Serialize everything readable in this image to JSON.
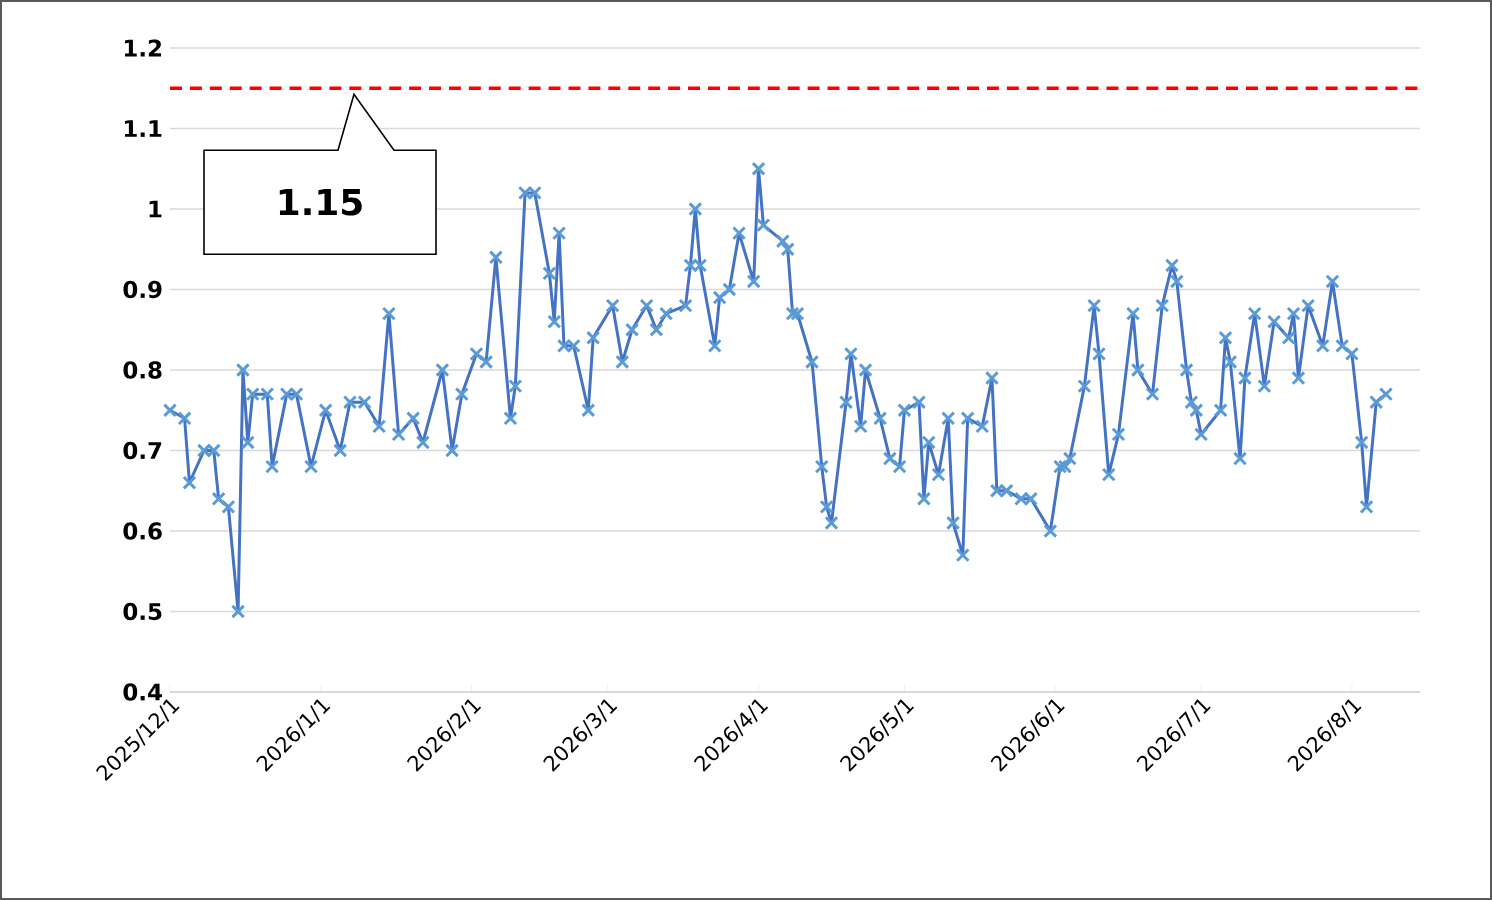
{
  "chart_data": {
    "type": "line",
    "x": [
      "2025-12-01",
      "2025-12-04",
      "2025-12-05",
      "2025-12-08",
      "2025-12-10",
      "2025-12-11",
      "2025-12-13",
      "2025-12-15",
      "2025-12-16",
      "2025-12-17",
      "2025-12-18",
      "2025-12-21",
      "2025-12-22",
      "2025-12-25",
      "2025-12-27",
      "2025-12-30",
      "2026-01-02",
      "2026-01-05",
      "2026-01-07",
      "2026-01-10",
      "2026-01-13",
      "2026-01-15",
      "2026-01-17",
      "2026-01-20",
      "2026-01-22",
      "2026-01-26",
      "2026-01-28",
      "2026-01-30",
      "2026-02-02",
      "2026-02-04",
      "2026-02-06",
      "2026-02-09",
      "2026-02-10",
      "2026-02-12",
      "2026-02-14",
      "2026-02-17",
      "2026-02-18",
      "2026-02-19",
      "2026-02-20",
      "2026-02-22",
      "2026-02-25",
      "2026-02-26",
      "2026-03-02",
      "2026-03-04",
      "2026-03-06",
      "2026-03-09",
      "2026-03-11",
      "2026-03-13",
      "2026-03-17",
      "2026-03-18",
      "2026-03-19",
      "2026-03-20",
      "2026-03-23",
      "2026-03-24",
      "2026-03-26",
      "2026-03-28",
      "2026-03-31",
      "2026-04-01",
      "2026-04-02",
      "2026-04-06",
      "2026-04-07",
      "2026-04-08",
      "2026-04-09",
      "2026-04-12",
      "2026-04-14",
      "2026-04-15",
      "2026-04-16",
      "2026-04-19",
      "2026-04-20",
      "2026-04-22",
      "2026-04-23",
      "2026-04-26",
      "2026-04-28",
      "2026-04-30",
      "2026-05-01",
      "2026-05-04",
      "2026-05-05",
      "2026-05-06",
      "2026-05-08",
      "2026-05-10",
      "2026-05-11",
      "2026-05-13",
      "2026-05-14",
      "2026-05-17",
      "2026-05-19",
      "2026-05-20",
      "2026-05-22",
      "2026-05-25",
      "2026-05-27",
      "2026-05-31",
      "2026-06-02",
      "2026-06-03",
      "2026-06-04",
      "2026-06-07",
      "2026-06-09",
      "2026-06-10",
      "2026-06-12",
      "2026-06-14",
      "2026-06-17",
      "2026-06-18",
      "2026-06-21",
      "2026-06-23",
      "2026-06-25",
      "2026-06-26",
      "2026-06-28",
      "2026-06-29",
      "2026-06-30",
      "2026-07-01",
      "2026-07-05",
      "2026-07-06",
      "2026-07-07",
      "2026-07-09",
      "2026-07-10",
      "2026-07-12",
      "2026-07-14",
      "2026-07-16",
      "2026-07-19",
      "2026-07-20",
      "2026-07-21",
      "2026-07-23",
      "2026-07-26",
      "2026-07-28",
      "2026-07-30",
      "2026-08-01",
      "2026-08-03",
      "2026-08-04",
      "2026-08-06",
      "2026-08-08"
    ],
    "series": [
      {
        "color": "#4472c4",
        "values": [
          0.75,
          0.74,
          0.66,
          0.7,
          0.7,
          0.64,
          0.63,
          0.5,
          0.8,
          0.71,
          0.77,
          0.77,
          0.68,
          0.77,
          0.77,
          0.68,
          0.75,
          0.7,
          0.76,
          0.76,
          0.73,
          0.87,
          0.72,
          0.74,
          0.71,
          0.8,
          0.7,
          0.77,
          0.82,
          0.81,
          0.94,
          0.74,
          0.78,
          1.02,
          1.02,
          0.92,
          0.86,
          0.97,
          0.83,
          0.83,
          0.75,
          0.84,
          0.88,
          0.81,
          0.85,
          0.88,
          0.85,
          0.87,
          0.88,
          0.93,
          1.0,
          0.93,
          0.83,
          0.89,
          0.9,
          0.97,
          0.91,
          1.05,
          0.98,
          0.96,
          0.95,
          0.87,
          0.87,
          0.81,
          0.68,
          0.63,
          0.61,
          0.76,
          0.82,
          0.73,
          0.8,
          0.74,
          0.69,
          0.68,
          0.75,
          0.76,
          0.64,
          0.71,
          0.67,
          0.74,
          0.61,
          0.57,
          0.74,
          0.73,
          0.79,
          0.65,
          0.65,
          0.64,
          0.64,
          0.6,
          0.68,
          0.68,
          0.69,
          0.78,
          0.88,
          0.82,
          0.67,
          0.72,
          0.87,
          0.8,
          0.77,
          0.88,
          0.93,
          0.91,
          0.8,
          0.76,
          0.75,
          0.72,
          0.75,
          0.84,
          0.81,
          0.69,
          0.79,
          0.87,
          0.78,
          0.86,
          0.84,
          0.87,
          0.79,
          0.88,
          0.83,
          0.91,
          0.83,
          0.82,
          0.71,
          0.63,
          0.76,
          0.77
        ]
      }
    ],
    "xlim": [
      "2025-12-01",
      "2026-08-15"
    ],
    "xticks": [
      {
        "value": "2025-12-01",
        "label": "2025/12/1"
      },
      {
        "value": "2026-01-01",
        "label": "2026/1/1"
      },
      {
        "value": "2026-02-01",
        "label": "2026/2/1"
      },
      {
        "value": "2026-03-01",
        "label": "2026/3/1"
      },
      {
        "value": "2026-04-01",
        "label": "2026/4/1"
      },
      {
        "value": "2026-05-01",
        "label": "2026/5/1"
      },
      {
        "value": "2026-06-01",
        "label": "2026/6/1"
      },
      {
        "value": "2026-07-01",
        "label": "2026/7/1"
      },
      {
        "value": "2026-08-01",
        "label": "2026/8/1"
      }
    ],
    "ylim": [
      0.4,
      1.2
    ],
    "yticks": [
      0.4,
      0.5,
      0.6,
      0.7,
      0.8,
      0.9,
      1,
      1.1,
      1.2
    ],
    "grid": "y",
    "marker": "cross",
    "line_style": "solid",
    "ref_lines": [
      {
        "axis": "y",
        "value": 1.15,
        "label": "1.15",
        "color": "#ff0000",
        "line_style": "dashed"
      }
    ]
  }
}
